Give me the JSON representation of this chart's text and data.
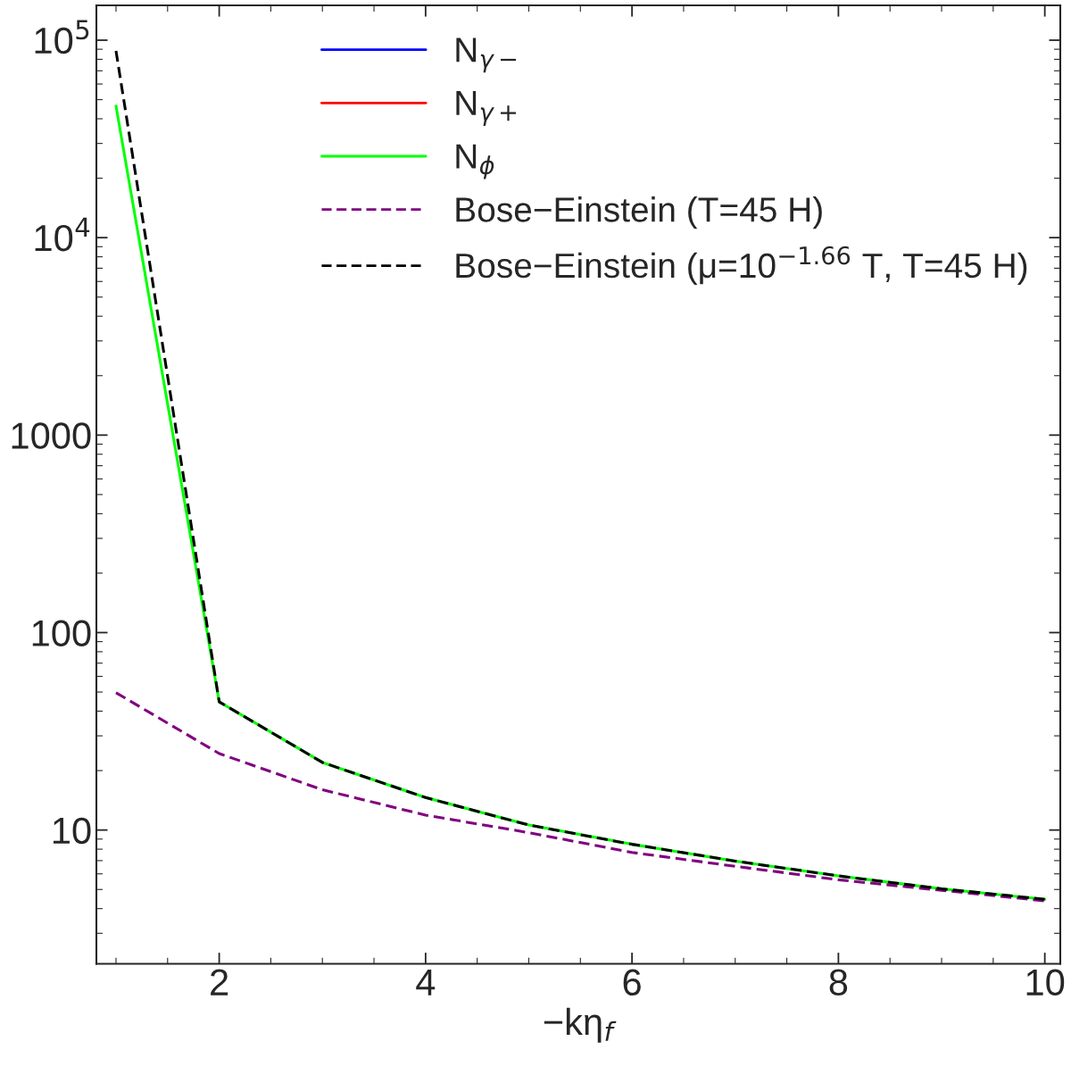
{
  "chart_data": {
    "type": "line",
    "xlabel": "−kη$_{f}$",
    "log": "y",
    "xlim": [
      0.81,
      10.15
    ],
    "ylim": [
      2.1,
      150000
    ],
    "xticks": [
      2,
      4,
      6,
      8,
      10
    ],
    "yticks": [
      {
        "value": 10,
        "label": "10"
      },
      {
        "value": 100,
        "label": "100"
      },
      {
        "value": 1000,
        "label": "1000"
      },
      {
        "value": 10000,
        "label": "10$^{4}$"
      },
      {
        "value": 100000,
        "label": "10$^{5}$"
      }
    ],
    "x": [
      1,
      2,
      3,
      4,
      5,
      6,
      7,
      8,
      9,
      10
    ],
    "legend": "top right",
    "grid": false,
    "series": [
      {
        "name": "N$_{γ−}$",
        "color": "#0000ff",
        "line_style": "solid",
        "values": [
          null,
          null,
          null,
          null,
          null,
          null,
          null,
          null,
          null,
          null
        ]
      },
      {
        "name": "N$_{γ+}$",
        "color": "#ff0000",
        "line_style": "solid",
        "values": [
          null,
          null,
          null,
          null,
          null,
          null,
          null,
          null,
          null,
          null
        ]
      },
      {
        "name": "N$_{ϕ}$",
        "color": "#00ff00",
        "line_style": "solid",
        "values": [
          46400,
          44.6,
          22.0,
          14.6,
          10.6,
          8.47,
          6.96,
          5.86,
          5.04,
          4.46
        ]
      },
      {
        "name": "Bose−Einstein (T=45 H)",
        "color": "#800080",
        "line_style": "dashed",
        "values": [
          49.6,
          24.4,
          16.0,
          11.9,
          9.7,
          7.7,
          6.55,
          5.6,
          4.95,
          4.38
        ]
      },
      {
        "name": "Bose−Einstein (μ=10$^{−1.66}$ T, T=45 H)",
        "color": "#000000",
        "line_style": "dashed",
        "values": [
          88300,
          44.6,
          22.0,
          14.6,
          10.6,
          8.47,
          6.96,
          5.86,
          5.04,
          4.46
        ]
      }
    ]
  }
}
